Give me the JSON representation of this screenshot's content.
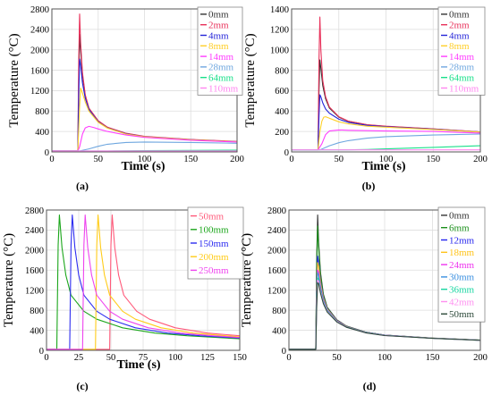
{
  "colors": {
    "0mm": "#333333",
    "2mm": "#e8315a",
    "4mm": "#2424d8",
    "8mm": "#ffcf2a",
    "14mm": "#ff3dff",
    "28mm": "#6fa7df",
    "64mm": "#19e08a",
    "110mm": "#ff85f0",
    "50mm": "#ff5a7a",
    "100mm": "#1ba61b",
    "150mm": "#2d2df0",
    "200mm": "#ffcc1a",
    "250mm": "#ee44ee",
    "6mm": "#1a8f1a",
    "12mm": "#2222ee",
    "18mm": "#ffc31a",
    "24mm": "#ee33ee",
    "30mm": "#3a8fe0",
    "36mm": "#16d6a0",
    "42mm": "#ff8ff0",
    "50mm-d": "#2d4a3a"
  },
  "chart_data": [
    {
      "type": "line",
      "panel_label": "(a)",
      "xlabel": "Time (s)",
      "ylabel": "Temperature (°C)",
      "xlim": [
        0,
        200
      ],
      "ylim": [
        0,
        2800
      ],
      "xticks": [
        "0",
        "50",
        "100",
        "150",
        "200"
      ],
      "yticks": [
        "0",
        "400",
        "800",
        "1200",
        "1600",
        "2000",
        "2400",
        "2800"
      ],
      "grid": true,
      "legend_position": "top-right",
      "series": [
        {
          "name": "0mm",
          "x": [
            0,
            28,
            29,
            30,
            31,
            33,
            36,
            40,
            50,
            60,
            80,
            100,
            150,
            200
          ],
          "y": [
            20,
            20,
            1400,
            2300,
            2000,
            1500,
            1100,
            850,
            600,
            480,
            360,
            300,
            240,
            200
          ]
        },
        {
          "name": "2mm",
          "x": [
            0,
            28,
            29,
            30,
            31,
            33,
            36,
            40,
            50,
            60,
            80,
            100,
            150,
            200
          ],
          "y": [
            20,
            20,
            1800,
            2700,
            2150,
            1550,
            1120,
            860,
            610,
            485,
            365,
            305,
            245,
            205
          ]
        },
        {
          "name": "4mm",
          "x": [
            0,
            28,
            29,
            30,
            31,
            33,
            36,
            40,
            50,
            60,
            80,
            100,
            150,
            200
          ],
          "y": [
            20,
            20,
            1100,
            1820,
            1700,
            1350,
            1050,
            830,
            590,
            470,
            355,
            300,
            240,
            200
          ]
        },
        {
          "name": "8mm",
          "x": [
            0,
            28,
            30,
            31,
            33,
            36,
            40,
            50,
            60,
            80,
            100,
            150,
            200
          ],
          "y": [
            20,
            20,
            900,
            1250,
            1150,
            980,
            800,
            580,
            465,
            350,
            295,
            238,
            200
          ]
        },
        {
          "name": "14mm",
          "x": [
            0,
            28,
            30,
            33,
            36,
            40,
            45,
            50,
            60,
            80,
            100,
            150,
            200
          ],
          "y": [
            20,
            20,
            100,
            350,
            470,
            500,
            480,
            450,
            400,
            330,
            285,
            230,
            195
          ]
        },
        {
          "name": "28mm",
          "x": [
            0,
            30,
            40,
            50,
            60,
            80,
            100,
            150,
            200
          ],
          "y": [
            20,
            20,
            60,
            110,
            150,
            185,
            195,
            185,
            170
          ]
        },
        {
          "name": "64mm",
          "x": [
            0,
            60,
            100,
            150,
            200
          ],
          "y": [
            20,
            20,
            25,
            30,
            35
          ]
        },
        {
          "name": "110mm",
          "x": [
            0,
            200
          ],
          "y": [
            20,
            20
          ]
        }
      ]
    },
    {
      "type": "line",
      "panel_label": "(b)",
      "xlabel": "Time (s)",
      "ylabel": "Temperature (°C)",
      "xlim": [
        0,
        200
      ],
      "ylim": [
        0,
        1400
      ],
      "xticks": [
        "0",
        "50",
        "100",
        "150",
        "200"
      ],
      "yticks": [
        "0",
        "200",
        "400",
        "600",
        "800",
        "1000",
        "1200",
        "1400"
      ],
      "grid": true,
      "legend_position": "top-right",
      "series": [
        {
          "name": "0mm",
          "x": [
            0,
            28,
            29,
            30,
            31,
            33,
            36,
            40,
            50,
            60,
            80,
            100,
            150,
            200
          ],
          "y": [
            20,
            20,
            600,
            900,
            820,
            650,
            520,
            430,
            340,
            300,
            265,
            250,
            225,
            195
          ]
        },
        {
          "name": "2mm",
          "x": [
            0,
            28,
            29,
            30,
            31,
            33,
            36,
            40,
            50,
            60,
            80,
            100,
            150,
            200
          ],
          "y": [
            20,
            20,
            900,
            1320,
            1000,
            700,
            540,
            440,
            345,
            302,
            267,
            252,
            226,
            196
          ]
        },
        {
          "name": "4mm",
          "x": [
            0,
            28,
            29,
            30,
            31,
            33,
            36,
            40,
            50,
            60,
            80,
            100,
            150,
            200
          ],
          "y": [
            20,
            20,
            350,
            560,
            540,
            480,
            420,
            380,
            320,
            290,
            260,
            247,
            222,
            195
          ]
        },
        {
          "name": "8mm",
          "x": [
            0,
            28,
            30,
            32,
            34,
            36,
            40,
            50,
            60,
            80,
            100,
            150,
            200
          ],
          "y": [
            20,
            20,
            200,
            300,
            340,
            345,
            330,
            295,
            275,
            252,
            242,
            220,
            194
          ]
        },
        {
          "name": "14mm",
          "x": [
            0,
            28,
            32,
            36,
            40,
            50,
            60,
            80,
            100,
            150,
            200
          ],
          "y": [
            20,
            20,
            80,
            170,
            205,
            215,
            212,
            208,
            205,
            200,
            185
          ]
        },
        {
          "name": "28mm",
          "x": [
            0,
            30,
            40,
            50,
            60,
            80,
            100,
            150,
            200
          ],
          "y": [
            20,
            20,
            60,
            90,
            110,
            135,
            150,
            165,
            175
          ]
        },
        {
          "name": "64mm",
          "x": [
            0,
            60,
            80,
            100,
            150,
            200
          ],
          "y": [
            20,
            20,
            24,
            30,
            45,
            60
          ]
        },
        {
          "name": "110mm",
          "x": [
            0,
            200
          ],
          "y": [
            20,
            20
          ]
        }
      ]
    },
    {
      "type": "line",
      "panel_label": "(c)",
      "xlabel": "Time (s)",
      "ylabel": "Temperature (°C)",
      "xlim": [
        0,
        150
      ],
      "ylim": [
        0,
        2800
      ],
      "xticks": [
        "0",
        "25",
        "50",
        "75",
        "100",
        "125",
        "150"
      ],
      "yticks": [
        "0",
        "400",
        "800",
        "1200",
        "1600",
        "2000",
        "2400",
        "2800"
      ],
      "grid": true,
      "legend_position": "top-right",
      "series": [
        {
          "name": "50mm",
          "x": [
            0,
            49,
            50,
            51,
            53,
            56,
            60,
            70,
            80,
            100,
            125,
            150
          ],
          "y": [
            20,
            20,
            2100,
            2700,
            2050,
            1500,
            1100,
            780,
            620,
            450,
            345,
            290
          ]
        },
        {
          "name": "100mm",
          "x": [
            0,
            8,
            9,
            10,
            12,
            15,
            19,
            29,
            39,
            59,
            84,
            109,
            150
          ],
          "y": [
            20,
            20,
            2100,
            2700,
            2050,
            1500,
            1100,
            780,
            620,
            450,
            345,
            290,
            230
          ]
        },
        {
          "name": "150mm",
          "x": [
            0,
            18,
            19,
            20,
            22,
            25,
            29,
            39,
            49,
            69,
            94,
            119,
            150
          ],
          "y": [
            20,
            20,
            2100,
            2700,
            2050,
            1500,
            1100,
            780,
            620,
            450,
            345,
            290,
            245
          ]
        },
        {
          "name": "200mm",
          "x": [
            0,
            38,
            39,
            40,
            42,
            45,
            49,
            59,
            69,
            89,
            114,
            139,
            150
          ],
          "y": [
            20,
            20,
            2100,
            2700,
            2050,
            1500,
            1100,
            780,
            620,
            450,
            345,
            290,
            270
          ]
        },
        {
          "name": "250mm",
          "x": [
            0,
            28,
            29,
            30,
            32,
            35,
            39,
            49,
            59,
            79,
            104,
            129,
            150
          ],
          "y": [
            20,
            20,
            2100,
            2700,
            2050,
            1500,
            1100,
            780,
            620,
            450,
            345,
            290,
            255
          ]
        }
      ]
    },
    {
      "type": "line",
      "panel_label": "(d)",
      "xlabel": "",
      "ylabel": "Temperature (°C)",
      "xlim": [
        0,
        200
      ],
      "ylim": [
        0,
        2800
      ],
      "xticks": [
        "0",
        "50",
        "100",
        "150",
        "200"
      ],
      "yticks": [
        "0",
        "400",
        "800",
        "1200",
        "1600",
        "2000",
        "2400",
        "2800"
      ],
      "grid": true,
      "legend_position": "top-right",
      "series": [
        {
          "name": "0mm",
          "x": [
            0,
            28,
            29,
            30,
            31,
            33,
            36,
            40,
            50,
            60,
            80,
            100,
            150,
            200
          ],
          "y": [
            20,
            20,
            1800,
            2700,
            2150,
            1550,
            1120,
            860,
            610,
            485,
            365,
            305,
            245,
            205
          ]
        },
        {
          "name": "6mm",
          "x": [
            0,
            28,
            29,
            30,
            31,
            33,
            36,
            40,
            50,
            60,
            80,
            100,
            150,
            200
          ],
          "y": [
            20,
            20,
            1650,
            2480,
            2050,
            1500,
            1100,
            850,
            600,
            480,
            362,
            302,
            243,
            203
          ]
        },
        {
          "name": "12mm",
          "x": [
            0,
            28,
            29,
            30,
            31,
            33,
            36,
            40,
            50,
            60,
            80,
            100,
            150,
            200
          ],
          "y": [
            20,
            20,
            1250,
            1880,
            1750,
            1380,
            1060,
            835,
            595,
            476,
            360,
            301,
            242,
            202
          ]
        },
        {
          "name": "18mm",
          "x": [
            0,
            28,
            29,
            30,
            31,
            33,
            36,
            40,
            50,
            60,
            80,
            100,
            150,
            200
          ],
          "y": [
            20,
            20,
            1150,
            1750,
            1680,
            1350,
            1040,
            825,
            590,
            474,
            358,
            300,
            242,
            202
          ]
        },
        {
          "name": "24mm",
          "x": [
            0,
            28,
            29,
            30,
            31,
            33,
            36,
            40,
            50,
            60,
            80,
            100,
            150,
            200
          ],
          "y": [
            20,
            20,
            1050,
            1600,
            1560,
            1290,
            1010,
            810,
            585,
            470,
            356,
            299,
            241,
            201
          ]
        },
        {
          "name": "30mm",
          "x": [
            0,
            28,
            29,
            30,
            31,
            33,
            36,
            40,
            50,
            60,
            80,
            100,
            150,
            200
          ],
          "y": [
            20,
            20,
            1000,
            1550,
            1500,
            1250,
            990,
            800,
            580,
            468,
            355,
            298,
            241,
            201
          ]
        },
        {
          "name": "36mm",
          "x": [
            0,
            28,
            29,
            30,
            31,
            33,
            36,
            40,
            50,
            60,
            80,
            100,
            150,
            200
          ],
          "y": [
            20,
            20,
            950,
            1450,
            1420,
            1200,
            960,
            785,
            575,
            465,
            353,
            297,
            240,
            200
          ]
        },
        {
          "name": "42mm",
          "x": [
            0,
            28,
            29,
            30,
            31,
            33,
            36,
            40,
            50,
            60,
            80,
            100,
            150,
            200
          ],
          "y": [
            20,
            20,
            900,
            1400,
            1380,
            1170,
            945,
            775,
            570,
            462,
            352,
            296,
            240,
            200
          ]
        },
        {
          "name": "50mm",
          "x": [
            0,
            28,
            29,
            30,
            31,
            33,
            36,
            40,
            50,
            60,
            80,
            100,
            150,
            200
          ],
          "y": [
            20,
            20,
            850,
            1350,
            1330,
            1140,
            930,
            765,
            565,
            460,
            350,
            295,
            239,
            200
          ]
        }
      ]
    }
  ]
}
